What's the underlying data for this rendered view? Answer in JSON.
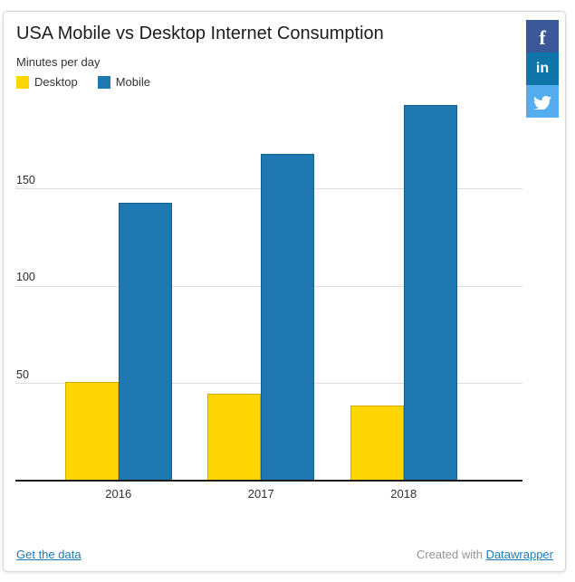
{
  "header": {
    "title": "USA Mobile vs Desktop Internet Consumption",
    "subtitle": "Minutes per day"
  },
  "chart_data": {
    "type": "bar",
    "title": "USA Mobile vs Desktop Internet Consumption",
    "ylabel": "Minutes per day",
    "xlabel": "",
    "categories": [
      "2016",
      "2017",
      "2018"
    ],
    "series": [
      {
        "name": "Desktop",
        "color": "#FFD604",
        "edge": "#D8A900",
        "values": [
          51,
          45,
          39
        ]
      },
      {
        "name": "Mobile",
        "color": "#1F78B1",
        "edge": "#15608F",
        "values": [
          143,
          168,
          193
        ]
      }
    ],
    "yticks": [
      50,
      100,
      150
    ],
    "ylim": [
      0,
      196
    ],
    "grid": true,
    "legend_position": "top-left"
  },
  "share_buttons": [
    {
      "name": "facebook",
      "glyph": "f",
      "color": "#3B5998"
    },
    {
      "name": "linkedin",
      "glyph": "in",
      "color": "#0E76A8"
    },
    {
      "name": "twitter",
      "glyph": "twitter-bird",
      "color": "#55ACEE"
    }
  ],
  "footer": {
    "get_data_label": "Get the data",
    "credit_prefix": "Created with ",
    "credit_link_label": "Datawrapper"
  },
  "colors": {
    "grid": "#DDDDDD",
    "axis": "#1A1A1A",
    "text_primary": "#1D1D1D",
    "text_secondary": "#333333",
    "text_muted": "#949494",
    "link": "#1D7BB5"
  }
}
